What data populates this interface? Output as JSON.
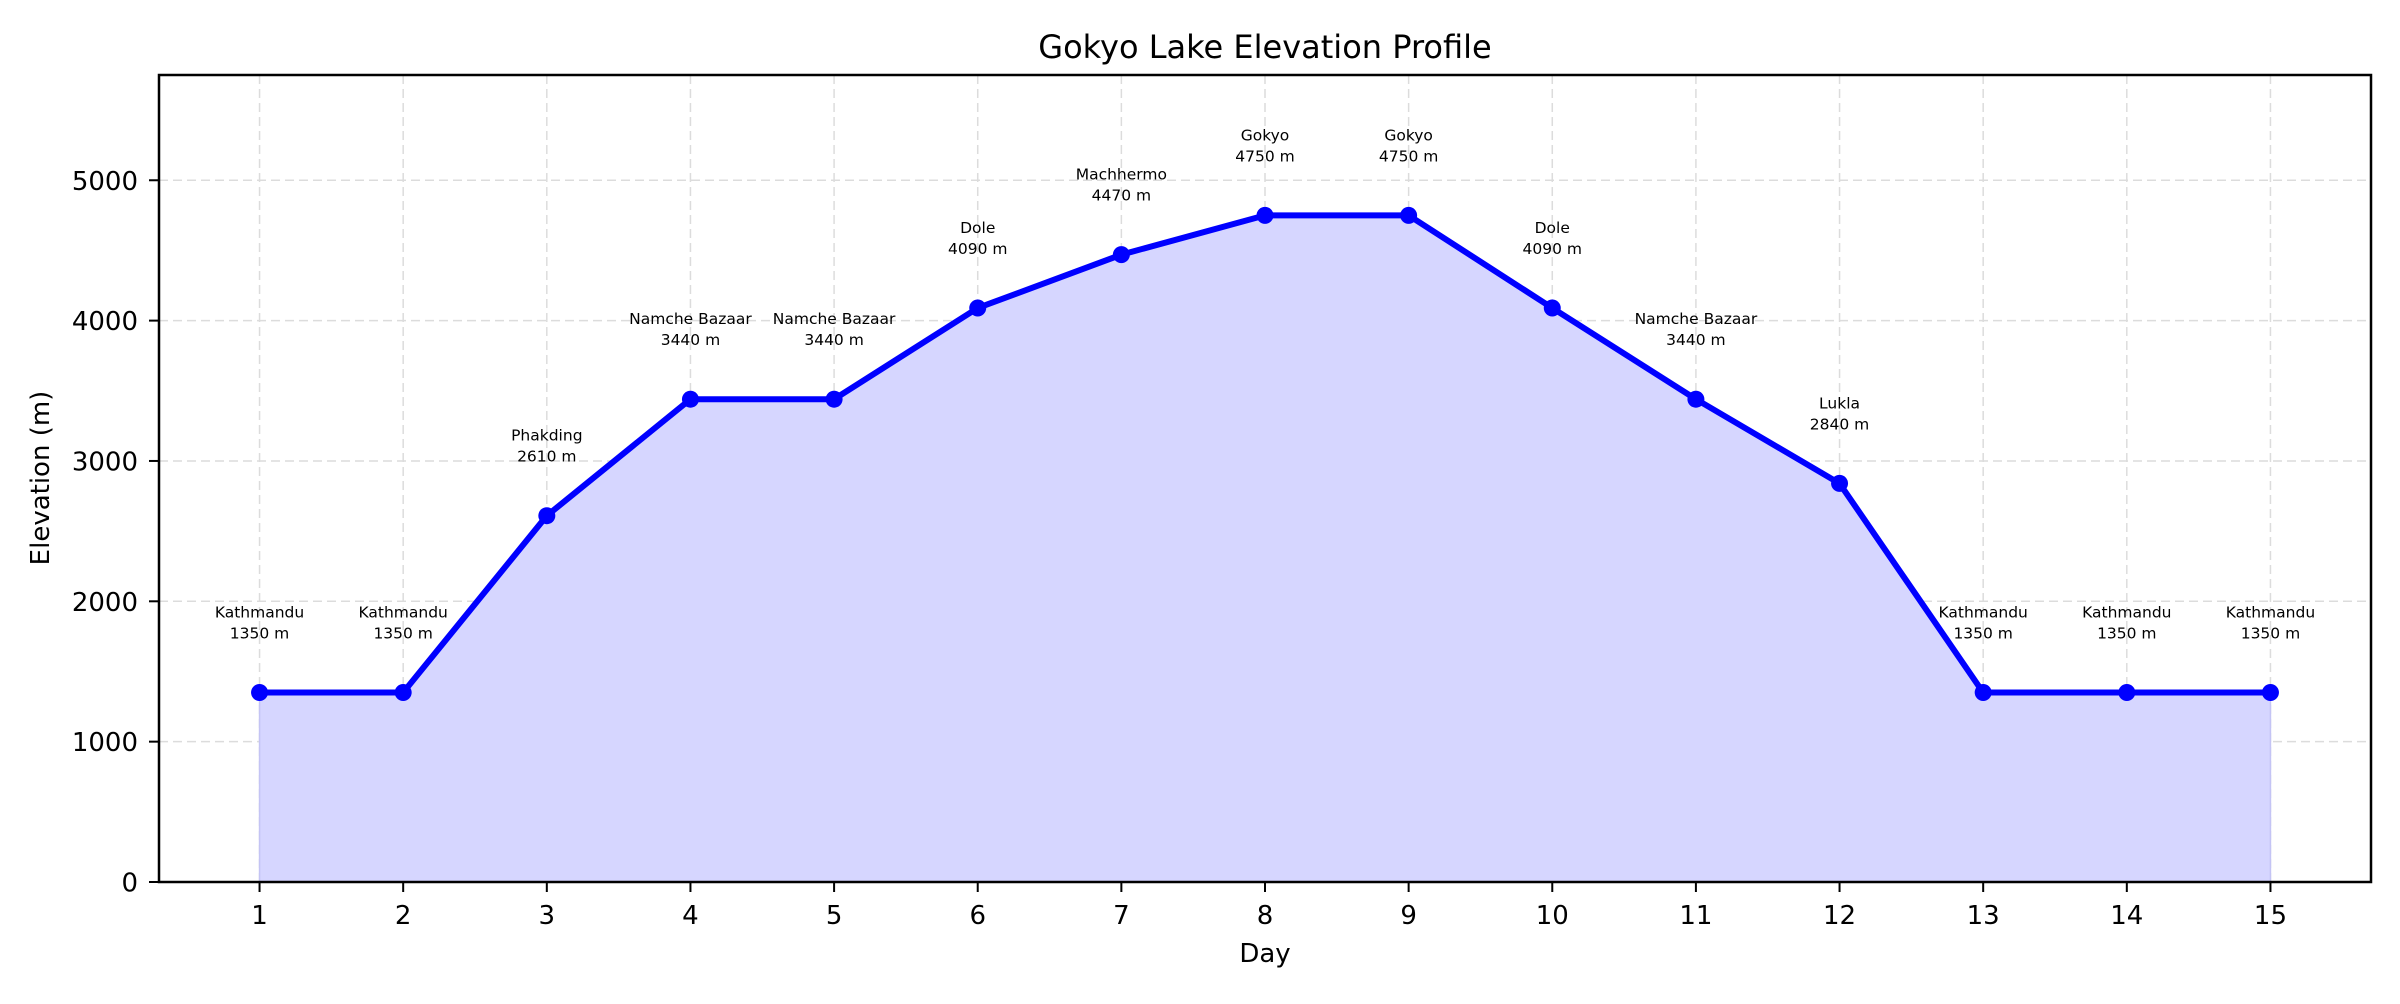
{
  "chart_data": {
    "type": "line",
    "title": "Gokyo Lake Elevation Profile",
    "xlabel": "Day",
    "ylabel": "Elevation (m)",
    "x": [
      1,
      2,
      3,
      4,
      5,
      6,
      7,
      8,
      9,
      10,
      11,
      12,
      13,
      14,
      15
    ],
    "categories": [
      "Kathmandu",
      "Kathmandu",
      "Phakding",
      "Namche Bazaar",
      "Namche Bazaar",
      "Dole",
      "Machhermo",
      "Gokyo",
      "Gokyo",
      "Dole",
      "Namche Bazaar",
      "Lukla",
      "Kathmandu",
      "Kathmandu",
      "Kathmandu"
    ],
    "series": [
      {
        "name": "Elevation",
        "values": [
          1350,
          1350,
          2610,
          3440,
          3440,
          4090,
          4470,
          4750,
          4750,
          4090,
          3440,
          2840,
          1350,
          1350,
          1350
        ]
      }
    ],
    "annotations": [
      {
        "day": 1,
        "line1": "Kathmandu",
        "line2": "1350 m"
      },
      {
        "day": 2,
        "line1": "Kathmandu",
        "line2": "1350 m"
      },
      {
        "day": 3,
        "line1": "Phakding",
        "line2": "2610 m"
      },
      {
        "day": 4,
        "line1": "Namche Bazaar",
        "line2": "3440 m"
      },
      {
        "day": 5,
        "line1": "Namche Bazaar",
        "line2": "3440 m"
      },
      {
        "day": 6,
        "line1": "Dole",
        "line2": "4090 m"
      },
      {
        "day": 7,
        "line1": "Machhermo",
        "line2": "4470 m"
      },
      {
        "day": 8,
        "line1": "Gokyo",
        "line2": "4750 m"
      },
      {
        "day": 9,
        "line1": "Gokyo",
        "line2": "4750 m"
      },
      {
        "day": 10,
        "line1": "Dole",
        "line2": "4090 m"
      },
      {
        "day": 11,
        "line1": "Namche Bazaar",
        "line2": "3440 m"
      },
      {
        "day": 12,
        "line1": "Lukla",
        "line2": "2840 m"
      },
      {
        "day": 13,
        "line1": "Kathmandu",
        "line2": "1350 m"
      },
      {
        "day": 14,
        "line1": "Kathmandu",
        "line2": "1350 m"
      },
      {
        "day": 15,
        "line1": "Kathmandu",
        "line2": "1350 m"
      }
    ],
    "xticks": [
      "1",
      "2",
      "3",
      "4",
      "5",
      "6",
      "7",
      "8",
      "9",
      "10",
      "11",
      "12",
      "13",
      "14",
      "15"
    ],
    "yticks": [
      "0",
      "1000",
      "2000",
      "3000",
      "4000",
      "5000"
    ],
    "xlim": [
      0.3,
      15.7
    ],
    "ylim": [
      0,
      5750
    ],
    "grid": true,
    "legend": null,
    "colors": {
      "line": "#0000ff",
      "marker": "#0000ff",
      "fill": "#d6d6ff",
      "grid": "#dcdcdc",
      "axes": "#000000"
    }
  }
}
